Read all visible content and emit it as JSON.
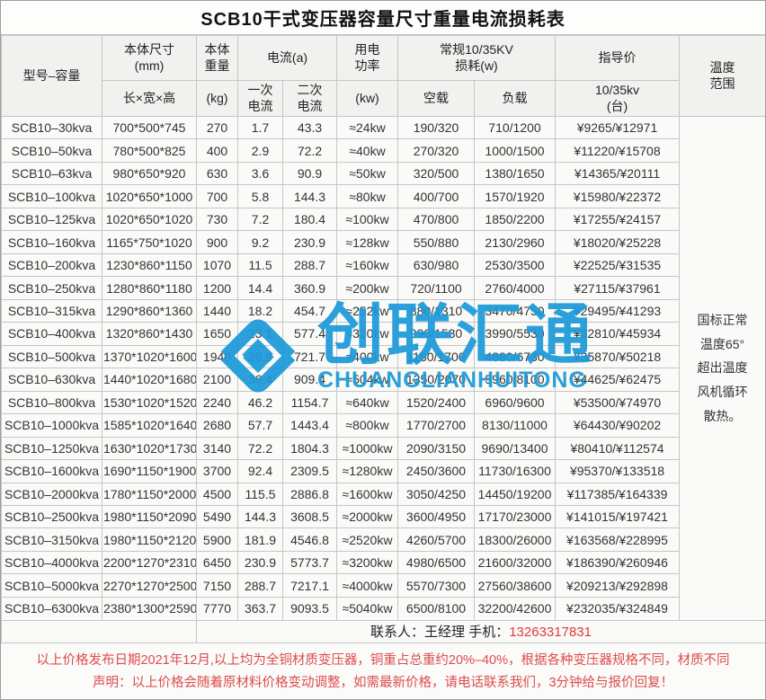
{
  "title": "SCB10干式变压器容量尺寸重量电流损耗表",
  "header": {
    "model": "型号–容量",
    "size_top": "本体尺寸\n(mm)",
    "size_sub": "长×宽×高",
    "weight_top": "本体\n重量",
    "weight_sub": "(kg)",
    "current_group": "电流(a)",
    "current_primary": "一次\n电流",
    "current_secondary": "二次\n电流",
    "power_top": "用电\n功率",
    "power_sub": "(kw)",
    "loss_group": "常规10/35KV\n损耗(w)",
    "loss_no_load": "空载",
    "loss_load": "负载",
    "price_top": "指导价",
    "price_sub": "10/35kv\n(台)",
    "temp": "温度\n范围"
  },
  "table": {
    "rows": [
      {
        "model": "SCB10–30kva",
        "size": "700*500*745",
        "weight": "270",
        "primary_current": "1.7",
        "secondary_current": "43.3",
        "power": "≈24kw",
        "no_load_loss": "190/320",
        "load_loss": "710/1200",
        "price": "¥9265/¥12971"
      },
      {
        "model": "SCB10–50kva",
        "size": "780*500*825",
        "weight": "400",
        "primary_current": "2.9",
        "secondary_current": "72.2",
        "power": "≈40kw",
        "no_load_loss": "270/320",
        "load_loss": "1000/1500",
        "price": "¥11220/¥15708"
      },
      {
        "model": "SCB10–63kva",
        "size": "980*650*920",
        "weight": "630",
        "primary_current": "3.6",
        "secondary_current": "90.9",
        "power": "≈50kw",
        "no_load_loss": "320/500",
        "load_loss": "1380/1650",
        "price": "¥14365/¥20111"
      },
      {
        "model": "SCB10–100kva",
        "size": "1020*650*1000",
        "weight": "700",
        "primary_current": "5.8",
        "secondary_current": "144.3",
        "power": "≈80kw",
        "no_load_loss": "400/700",
        "load_loss": "1570/1920",
        "price": "¥15980/¥22372"
      },
      {
        "model": "SCB10–125kva",
        "size": "1020*650*1020",
        "weight": "730",
        "primary_current": "7.2",
        "secondary_current": "180.4",
        "power": "≈100kw",
        "no_load_loss": "470/800",
        "load_loss": "1850/2200",
        "price": "¥17255/¥24157"
      },
      {
        "model": "SCB10–160kva",
        "size": "1165*750*1020",
        "weight": "900",
        "primary_current": "9.2",
        "secondary_current": "230.9",
        "power": "≈128kw",
        "no_load_loss": "550/880",
        "load_loss": "2130/2960",
        "price": "¥18020/¥25228"
      },
      {
        "model": "SCB10–200kva",
        "size": "1230*860*1150",
        "weight": "1070",
        "primary_current": "11.5",
        "secondary_current": "288.7",
        "power": "≈160kw",
        "no_load_loss": "630/980",
        "load_loss": "2530/3500",
        "price": "¥22525/¥31535"
      },
      {
        "model": "SCB10–250kva",
        "size": "1280*860*1180",
        "weight": "1200",
        "primary_current": "14.4",
        "secondary_current": "360.9",
        "power": "≈200kw",
        "no_load_loss": "720/1100",
        "load_loss": "2760/4000",
        "price": "¥27115/¥37961"
      },
      {
        "model": "SCB10–315kva",
        "size": "1290*860*1360",
        "weight": "1440",
        "primary_current": "18.2",
        "secondary_current": "454.7",
        "power": "≈252kw",
        "no_load_loss": "880/1310",
        "load_loss": "3470/4750",
        "price": "¥29495/¥41293"
      },
      {
        "model": "SCB10–400kva",
        "size": "1320*860*1430",
        "weight": "1650",
        "primary_current": "23.1",
        "secondary_current": "577.4",
        "power": "≈320kw",
        "no_load_loss": "990/1530",
        "load_loss": "3990/5530",
        "price": "¥32810/¥45934"
      },
      {
        "model": "SCB10–500kva",
        "size": "1370*1020*1600",
        "weight": "1940",
        "primary_current": "28.9",
        "secondary_current": "721.7",
        "power": "≈400kw",
        "no_load_loss": "1160/1700",
        "load_loss": "4880/6730",
        "price": "¥35870/¥50218"
      },
      {
        "model": "SCB10–630kva",
        "size": "1440*1020*1680",
        "weight": "2100",
        "primary_current": "36.4",
        "secondary_current": "909.4",
        "power": "≈504kw",
        "no_load_loss": "1350/2070",
        "load_loss": "5960/8100",
        "price": "¥44625/¥62475"
      },
      {
        "model": "SCB10–800kva",
        "size": "1530*1020*1520",
        "weight": "2240",
        "primary_current": "46.2",
        "secondary_current": "1154.7",
        "power": "≈640kw",
        "no_load_loss": "1520/2400",
        "load_loss": "6960/9600",
        "price": "¥53500/¥74970"
      },
      {
        "model": "SCB10–1000kva",
        "size": "1585*1020*1640",
        "weight": "2680",
        "primary_current": "57.7",
        "secondary_current": "1443.4",
        "power": "≈800kw",
        "no_load_loss": "1770/2700",
        "load_loss": "8130/11000",
        "price": "¥64430/¥90202"
      },
      {
        "model": "SCB10–1250kva",
        "size": "1630*1020*1730",
        "weight": "3140",
        "primary_current": "72.2",
        "secondary_current": "1804.3",
        "power": "≈1000kw",
        "no_load_loss": "2090/3150",
        "load_loss": "9690/13400",
        "price": "¥80410/¥112574"
      },
      {
        "model": "SCB10–1600kva",
        "size": "1690*1150*1900",
        "weight": "3700",
        "primary_current": "92.4",
        "secondary_current": "2309.5",
        "power": "≈1280kw",
        "no_load_loss": "2450/3600",
        "load_loss": "11730/16300",
        "price": "¥95370/¥133518"
      },
      {
        "model": "SCB10–2000kva",
        "size": "1780*1150*2000",
        "weight": "4500",
        "primary_current": "115.5",
        "secondary_current": "2886.8",
        "power": "≈1600kw",
        "no_load_loss": "3050/4250",
        "load_loss": "14450/19200",
        "price": "¥117385/¥164339"
      },
      {
        "model": "SCB10–2500kva",
        "size": "1980*1150*2090",
        "weight": "5490",
        "primary_current": "144.3",
        "secondary_current": "3608.5",
        "power": "≈2000kw",
        "no_load_loss": "3600/4950",
        "load_loss": "17170/23000",
        "price": "¥141015/¥197421"
      },
      {
        "model": "SCB10–3150kva",
        "size": "1980*1150*2120",
        "weight": "5900",
        "primary_current": "181.9",
        "secondary_current": "4546.8",
        "power": "≈2520kw",
        "no_load_loss": "4260/5700",
        "load_loss": "18300/26000",
        "price": "¥163568/¥228995"
      },
      {
        "model": "SCB10–4000kva",
        "size": "2200*1270*2310",
        "weight": "6450",
        "primary_current": "230.9",
        "secondary_current": "5773.7",
        "power": "≈3200kw",
        "no_load_loss": "4980/6500",
        "load_loss": "21600/32000",
        "price": "¥186390/¥260946"
      },
      {
        "model": "SCB10–5000kva",
        "size": "2270*1270*2500",
        "weight": "7150",
        "primary_current": "288.7",
        "secondary_current": "7217.1",
        "power": "≈4000kw",
        "no_load_loss": "5570/7300",
        "load_loss": "27560/38600",
        "price": "¥209213/¥292898"
      },
      {
        "model": "SCB10–6300kva",
        "size": "2380*1300*2590",
        "weight": "7770",
        "primary_current": "363.7",
        "secondary_current": "9093.5",
        "power": "≈5040kw",
        "no_load_loss": "6500/8100",
        "load_loss": "32200/42600",
        "price": "¥232035/¥324849"
      }
    ]
  },
  "temperature": {
    "lines": [
      "国标正常",
      "温度65°",
      "超出温度",
      "风机循环",
      "散热。"
    ]
  },
  "contact": {
    "text": "联系人：王经理  手机：",
    "phone": "13263317831"
  },
  "notes": {
    "line1": "以上价格发布日期2021年12月,以上均为全铜材质变压器，铜重占总重约20%–40%，根据各种变压器规格不同，材质不同",
    "line2": "声明：以上价格会随着原材料价格变动调整，如需最新价格，请电话联系我们，3分钟给与报价回复！"
  },
  "watermark": {
    "cn": "创联汇通",
    "en": "CHUANGLIANHUITONG"
  },
  "colors": {
    "accent_red": "#dc4545",
    "watermark_blue": "#1c9ad8",
    "border_gray": "#c6c6c6"
  }
}
